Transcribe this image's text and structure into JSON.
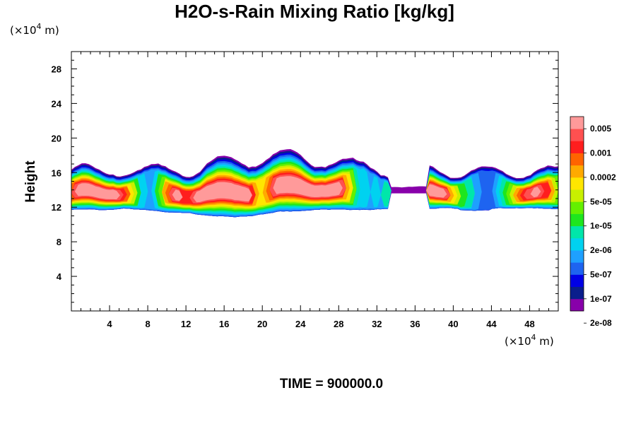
{
  "chart_data": {
    "type": "heatmap",
    "title": "H2O-s-Rain Mixing Ratio [kg/kg]",
    "ylabel": "Height",
    "x_unit_base": "(×10",
    "x_unit_exp": "4",
    "x_unit_suffix": " m)",
    "y_unit_base": "(×10",
    "y_unit_exp": "4",
    "y_unit_suffix": " m)",
    "xlim": [
      0,
      51
    ],
    "ylim": [
      0,
      30
    ],
    "x_ticks": [
      4,
      8,
      12,
      16,
      20,
      24,
      28,
      32,
      36,
      40,
      44,
      48
    ],
    "x_tick_labels": [
      "4",
      "8",
      "12",
      "16",
      "20",
      "24",
      "28",
      "32",
      "36",
      "40",
      "44",
      "48"
    ],
    "y_ticks": [
      4,
      8,
      12,
      16,
      20,
      24,
      28
    ],
    "y_tick_labels": [
      "4",
      "8",
      "12",
      "16",
      "20",
      "24",
      "28"
    ],
    "legend": {
      "placement": "right",
      "labels": [
        "0.005",
        "0.001",
        "0.0002",
        "5e-05",
        "1e-05",
        "2e-06",
        "5e-07",
        "1e-07",
        "2e-08"
      ],
      "colors": [
        "#8800aa",
        "#0a1e8c",
        "#0000e6",
        "#1e64f0",
        "#1ea0ff",
        "#00d2f0",
        "#00e6aa",
        "#1ee61e",
        "#64f000",
        "#c8f000",
        "#ffe600",
        "#ffaa00",
        "#ff6400",
        "#ff1e1e",
        "#ff5050",
        "#ff9a9a"
      ]
    },
    "cloud_region": {
      "x_range": [
        0,
        51
      ],
      "base_height": [
        10.5,
        12.5
      ],
      "top_height": [
        16,
        19.5
      ],
      "max_level_index": 15
    },
    "time_label": "TIME = 900000.0"
  }
}
